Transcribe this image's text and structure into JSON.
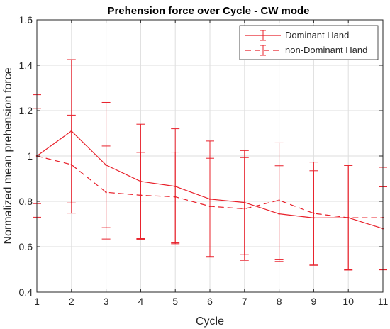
{
  "chart_data": {
    "type": "line",
    "title": "Prehension force over Cycle - CW mode",
    "xlabel": "Cycle",
    "ylabel": "Normalized mean prehension force",
    "xlim": [
      1,
      11
    ],
    "ylim": [
      0.4,
      1.6
    ],
    "x": [
      1,
      2,
      3,
      4,
      5,
      6,
      7,
      8,
      9,
      10,
      11
    ],
    "xticks": [
      "1",
      "2",
      "3",
      "4",
      "5",
      "6",
      "7",
      "8",
      "9",
      "10",
      "11"
    ],
    "yticks": [
      "0.4",
      "0.6",
      "0.8",
      "1",
      "1.2",
      "1.4",
      "1.6"
    ],
    "grid": true,
    "legend_position": "top-right",
    "series": [
      {
        "name": "Dominant Hand",
        "line_style": "solid",
        "color": "#e8202a",
        "values": [
          1.0,
          1.11,
          0.96,
          0.888,
          0.866,
          0.81,
          0.795,
          0.745,
          0.727,
          0.728,
          0.68
        ],
        "error_low": [
          0.73,
          0.793,
          0.684,
          0.636,
          0.613,
          0.554,
          0.565,
          0.535,
          0.518,
          0.497,
          0.498
        ],
        "error_high": [
          1.27,
          1.425,
          1.236,
          1.14,
          1.12,
          1.066,
          1.024,
          0.957,
          0.935,
          0.96,
          0.864
        ]
      },
      {
        "name": "non-Dominant Hand",
        "line_style": "dashed",
        "color": "#e8202a",
        "values": [
          1.0,
          0.962,
          0.84,
          0.827,
          0.82,
          0.778,
          0.767,
          0.805,
          0.747,
          0.728,
          0.728
        ],
        "error_low": [
          0.79,
          0.748,
          0.634,
          0.633,
          0.617,
          0.557,
          0.54,
          0.545,
          0.522,
          0.5,
          0.5
        ],
        "error_high": [
          1.21,
          1.18,
          1.044,
          1.016,
          1.017,
          0.99,
          0.993,
          1.058,
          0.973,
          0.958,
          0.95
        ]
      }
    ]
  }
}
